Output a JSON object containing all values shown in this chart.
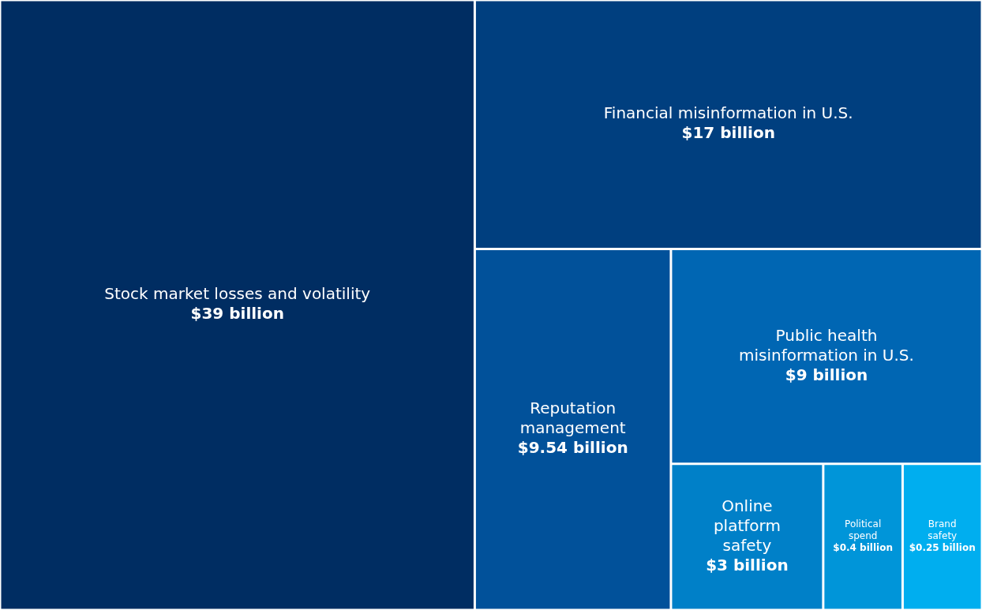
{
  "chart_data": {
    "type": "other",
    "categories": [
      "Stock market losses and volatility",
      "Financial misinformation in U.S.",
      "Reputation management",
      "Public health misinformation in U.S.",
      "Online platform safety",
      "Political spend",
      "Brand safety"
    ],
    "values": [
      39,
      17,
      9.54,
      9,
      3,
      0.4,
      0.25
    ],
    "value_labels": [
      "$39 billion",
      "$17 billion",
      "$9.54 billion",
      "$9 billion",
      "$3 billion",
      "$0.4 billion",
      "$0.25 billion"
    ],
    "colors": [
      "#002d62",
      "#003f7f",
      "#01519a",
      "#0066b3",
      "#0080c8",
      "#0095d9",
      "#00aeef"
    ]
  }
}
